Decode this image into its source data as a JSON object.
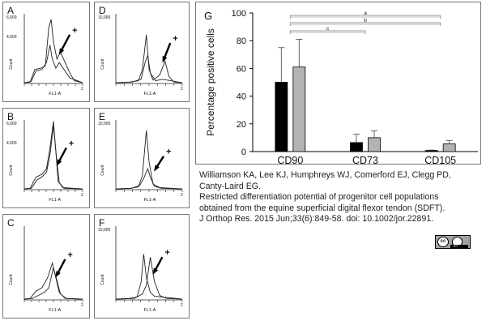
{
  "panels": [
    {
      "label": "A",
      "ymax": "6,000",
      "ymid": "4,000",
      "xlabel": "FL1-A",
      "ylabel": "Count",
      "plus": "+"
    },
    {
      "label": "B",
      "ymax": "6,000",
      "ymid": "4,000",
      "xlabel": "FL1-A",
      "ylabel": "Count",
      "plus": "+"
    },
    {
      "label": "C",
      "ymax": "",
      "ymid": "",
      "xlabel": "FL1-A",
      "ylabel": "Count",
      "plus": "+"
    },
    {
      "label": "D",
      "ymax": "10,000",
      "ymid": "",
      "xlabel": "FL1-A",
      "ylabel": "Count",
      "plus": "+"
    },
    {
      "label": "E",
      "ymax": "10,000",
      "ymid": "",
      "xlabel": "FL1-A",
      "ylabel": "Count",
      "plus": "+"
    },
    {
      "label": "F",
      "ymax": "10,000",
      "ymid": "",
      "xlabel": "FL1-A",
      "ylabel": "Count",
      "plus": "+"
    }
  ],
  "chart_data": {
    "type": "bar",
    "panel_label": "G",
    "title": "",
    "xlabel": "",
    "ylabel": "Percentage positive cells",
    "categories": [
      "CD90",
      "CD73",
      "CD105"
    ],
    "ylim": [
      0,
      100
    ],
    "yticks": [
      0,
      20,
      40,
      60,
      80,
      100
    ],
    "grid": false,
    "legend": "none",
    "series": [
      {
        "values": [
          50,
          6.5,
          0.8
        ],
        "errors": [
          25,
          6,
          0.3
        ],
        "color": "#000000"
      },
      {
        "values": [
          61,
          10,
          5.5
        ],
        "errors": [
          20,
          5,
          2.5
        ],
        "color": "#b3b3b3"
      }
    ],
    "significance": [
      {
        "label": "a",
        "from": "CD90",
        "to": "CD105"
      },
      {
        "label": "b",
        "from": "CD90",
        "to": "CD105"
      },
      {
        "label": "c",
        "from": "CD90",
        "to": "CD73"
      }
    ]
  },
  "citation": {
    "line1": "Williamson KA, Lee KJ, Humphreys WJ, Comerford EJ, Clegg PD,",
    "line2": "Canty-Laird EG.",
    "line3": "Restricted differentiation potential of progenitor cell populations",
    "line4": "obtained from the equine superficial digital flexor tendon (SDFT).",
    "line5": "J Orthop Res. 2015 Jun;33(6):849-58. doi: 10.1002/jor.22891."
  },
  "license": {
    "cc": "cc",
    "by": "BY"
  }
}
